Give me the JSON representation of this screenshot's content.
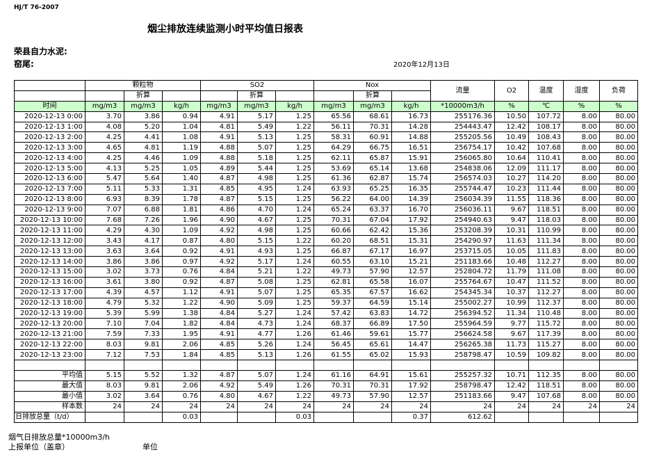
{
  "header": {
    "standard": "HJ/T  76-2007",
    "title": "烟尘排放连续监测小时平均值日报表",
    "company": "荣县自力水泥:",
    "site": "窑尾:",
    "date": "2020年12月13日"
  },
  "table": {
    "groups": [
      "颗粒物",
      "SO2",
      "Nox"
    ],
    "converted": [
      "折算",
      "折算",
      "折算"
    ],
    "other_headers": [
      "流量",
      "O2",
      "温度",
      "湿度",
      "负荷"
    ],
    "units": [
      "时间",
      "mg/m3",
      "mg/m3",
      "kg/h",
      "mg/m3",
      "mg/m3",
      "kg/h",
      "mg/m3",
      "mg/m3",
      "kg/h",
      "*10000m3/h",
      "%",
      "℃",
      "%",
      "%"
    ],
    "rows": [
      [
        "2020-12-13 0:00",
        "3.70",
        "3.86",
        "0.94",
        "4.91",
        "5.17",
        "1.25",
        "65.56",
        "68.61",
        "16.73",
        "255176.36",
        "10.50",
        "107.72",
        "8.00",
        "80.00"
      ],
      [
        "2020-12-13 1:00",
        "4.08",
        "5.20",
        "1.04",
        "4.81",
        "5.49",
        "1.22",
        "56.11",
        "70.31",
        "14.28",
        "254443.47",
        "12.42",
        "108.17",
        "8.00",
        "80.00"
      ],
      [
        "2020-12-13 2:00",
        "4.25",
        "4.41",
        "1.08",
        "4.91",
        "5.13",
        "1.25",
        "58.31",
        "60.91",
        "14.88",
        "255205.56",
        "10.49",
        "108.43",
        "8.00",
        "80.00"
      ],
      [
        "2020-12-13 3:00",
        "4.65",
        "4.81",
        "1.19",
        "4.88",
        "5.07",
        "1.25",
        "64.29",
        "66.75",
        "16.51",
        "256754.17",
        "10.42",
        "107.68",
        "8.00",
        "80.00"
      ],
      [
        "2020-12-13 4:00",
        "4.25",
        "4.46",
        "1.09",
        "4.88",
        "5.18",
        "1.25",
        "62.11",
        "65.87",
        "15.91",
        "256065.80",
        "10.64",
        "110.41",
        "8.00",
        "80.00"
      ],
      [
        "2020-12-13 5:00",
        "4.13",
        "5.25",
        "1.05",
        "4.89",
        "5.44",
        "1.25",
        "53.69",
        "65.14",
        "13.68",
        "254838.06",
        "12.09",
        "111.17",
        "8.00",
        "80.00"
      ],
      [
        "2020-12-13 6:00",
        "5.47",
        "5.64",
        "1.40",
        "4.87",
        "4.98",
        "1.25",
        "61.36",
        "62.87",
        "15.74",
        "256574.03",
        "10.27",
        "114.20",
        "8.00",
        "80.00"
      ],
      [
        "2020-12-13 7:00",
        "5.11",
        "5.33",
        "1.31",
        "4.85",
        "4.95",
        "1.24",
        "63.93",
        "65.25",
        "16.35",
        "255744.47",
        "10.23",
        "111.44",
        "8.00",
        "80.00"
      ],
      [
        "2020-12-13 8:00",
        "6.93",
        "8.39",
        "1.78",
        "4.87",
        "5.15",
        "1.25",
        "56.22",
        "64.00",
        "14.39",
        "256034.39",
        "11.55",
        "118.36",
        "8.00",
        "80.00"
      ],
      [
        "2020-12-13 9:00",
        "7.07",
        "6.88",
        "1.81",
        "4.86",
        "4.70",
        "1.24",
        "65.24",
        "63.37",
        "16.70",
        "256036.11",
        "9.67",
        "118.51",
        "8.00",
        "80.00"
      ],
      [
        "2020-12-13 10:00",
        "7.68",
        "7.26",
        "1.96",
        "4.90",
        "4.67",
        "1.25",
        "70.31",
        "67.04",
        "17.92",
        "254940.63",
        "9.47",
        "118.03",
        "8.00",
        "80.00"
      ],
      [
        "2020-12-13 11:00",
        "4.29",
        "4.30",
        "1.09",
        "4.92",
        "4.98",
        "1.25",
        "60.66",
        "62.42",
        "15.36",
        "253208.39",
        "10.31",
        "110.99",
        "8.00",
        "80.00"
      ],
      [
        "2020-12-13 12:00",
        "3.43",
        "4.17",
        "0.87",
        "4.80",
        "5.15",
        "1.22",
        "60.20",
        "68.51",
        "15.31",
        "254290.97",
        "11.63",
        "111.34",
        "8.00",
        "80.00"
      ],
      [
        "2020-12-13 13:00",
        "3.63",
        "3.64",
        "0.92",
        "4.91",
        "4.93",
        "1.25",
        "66.87",
        "67.17",
        "16.97",
        "253715.05",
        "10.05",
        "111.83",
        "8.00",
        "80.00"
      ],
      [
        "2020-12-13 14:00",
        "3.86",
        "3.86",
        "0.97",
        "4.92",
        "5.17",
        "1.24",
        "60.55",
        "63.10",
        "15.21",
        "251183.66",
        "10.48",
        "112.27",
        "8.00",
        "80.00"
      ],
      [
        "2020-12-13 15:00",
        "3.02",
        "3.73",
        "0.76",
        "4.84",
        "5.21",
        "1.22",
        "49.73",
        "57.90",
        "12.57",
        "252804.72",
        "11.79",
        "111.08",
        "8.00",
        "80.00"
      ],
      [
        "2020-12-13 16:00",
        "3.61",
        "3.80",
        "0.92",
        "4.87",
        "5.08",
        "1.25",
        "62.81",
        "65.58",
        "16.07",
        "255764.67",
        "10.47",
        "111.52",
        "8.00",
        "80.00"
      ],
      [
        "2020-12-13 17:00",
        "4.39",
        "4.57",
        "1.12",
        "4.91",
        "5.07",
        "1.25",
        "65.35",
        "67.57",
        "16.62",
        "254345.34",
        "10.37",
        "112.27",
        "8.00",
        "80.00"
      ],
      [
        "2020-12-13 18:00",
        "4.79",
        "5.32",
        "1.22",
        "4.90",
        "5.09",
        "1.25",
        "59.37",
        "64.59",
        "15.14",
        "255002.27",
        "10.99",
        "112.37",
        "8.00",
        "80.00"
      ],
      [
        "2020-12-13 19:00",
        "5.39",
        "5.99",
        "1.38",
        "4.84",
        "5.27",
        "1.24",
        "57.42",
        "63.83",
        "14.72",
        "256394.52",
        "11.34",
        "110.48",
        "8.00",
        "80.00"
      ],
      [
        "2020-12-13 20:00",
        "7.10",
        "7.04",
        "1.82",
        "4.84",
        "4.73",
        "1.24",
        "68.37",
        "66.89",
        "17.50",
        "255964.59",
        "9.77",
        "115.72",
        "8.00",
        "80.00"
      ],
      [
        "2020-12-13 21:00",
        "7.59",
        "7.33",
        "1.95",
        "4.91",
        "4.77",
        "1.26",
        "61.46",
        "59.61",
        "15.77",
        "256624.58",
        "9.67",
        "117.39",
        "8.00",
        "80.00"
      ],
      [
        "2020-12-13 22:00",
        "8.03",
        "9.81",
        "2.06",
        "4.85",
        "5.26",
        "1.24",
        "56.45",
        "65.61",
        "14.47",
        "256265.38",
        "11.73",
        "115.27",
        "8.00",
        "80.00"
      ],
      [
        "2020-12-13 23:00",
        "7.12",
        "7.53",
        "1.84",
        "4.85",
        "5.13",
        "1.26",
        "61.55",
        "65.02",
        "15.93",
        "258798.47",
        "10.59",
        "109.82",
        "8.00",
        "80.00"
      ]
    ],
    "summary": [
      [
        "平均值",
        "5.15",
        "5.52",
        "1.32",
        "4.87",
        "5.07",
        "1.24",
        "61.16",
        "64.91",
        "15.61",
        "255257.32",
        "10.71",
        "112.35",
        "8.00",
        "80.00"
      ],
      [
        "最大值",
        "8.03",
        "9.81",
        "2.06",
        "4.92",
        "5.49",
        "1.26",
        "70.31",
        "70.31",
        "17.92",
        "258798.47",
        "12.42",
        "118.51",
        "8.00",
        "80.00"
      ],
      [
        "最小值",
        "3.02",
        "3.64",
        "0.76",
        "4.80",
        "4.67",
        "1.22",
        "49.73",
        "57.90",
        "12.57",
        "251183.66",
        "9.47",
        "107.68",
        "8.00",
        "80.00"
      ],
      [
        "样本数",
        "24",
        "24",
        "24",
        "24",
        "24",
        "24",
        "24",
        "24",
        "24",
        "24",
        "24",
        "24",
        "24",
        "24"
      ]
    ],
    "daily_total": {
      "label": "日排放总量（t/d）",
      "particulate": "0.03",
      "so2": "0.03",
      "nox": "0.37",
      "flow": "612.62"
    }
  },
  "footer": {
    "flue_gas_total": "烟气日排放总量*10000m3/h",
    "reporting_unit": "上报单位（盖章）",
    "unit": "单位"
  }
}
